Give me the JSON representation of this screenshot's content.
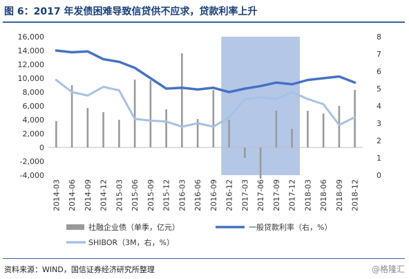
{
  "title": "图 6：2017 年发债困难导致信贷供不应求，贷款利率上升",
  "footer": "资料来源：WIND，国信证券经济研究所整理",
  "watermark": "@格隆汇",
  "colors": {
    "title": "#1a3f7a",
    "bar": "#9a9a9a",
    "loan_rate": "#4472c4",
    "shibor": "#a6c1e6",
    "highlight": "#b4c7e7"
  },
  "chart_data": {
    "type": "bar+line",
    "categories": [
      "2014-03",
      "2014-06",
      "2014-09",
      "2014-12",
      "2015-03",
      "2015-06",
      "2015-09",
      "2015-12",
      "2016-03",
      "2016-06",
      "2016-09",
      "2016-12",
      "2017-03",
      "2017-06",
      "2017-09",
      "2017-12",
      "2018-03",
      "2018-06",
      "2018-09",
      "2018-12"
    ],
    "left_axis": {
      "ylim": [
        -4000,
        16000
      ],
      "ticks": [
        "16,000",
        "14,000",
        "12,000",
        "10,000",
        "8,000",
        "6,000",
        "4,000",
        "2,000",
        "0",
        "-2,000",
        "-4,000"
      ]
    },
    "right_axis": {
      "ylim": [
        0,
        8
      ],
      "ticks": [
        "8",
        "7",
        "6",
        "5",
        "4",
        "3",
        "2",
        "1",
        "0"
      ]
    },
    "highlight_range": [
      "2016-12",
      "2017-12"
    ],
    "series": [
      {
        "name": "社融企业债（单季，亿元）",
        "kind": "bar",
        "axis": "left",
        "values": [
          3800,
          9000,
          5700,
          5100,
          4000,
          9800,
          9700,
          5500,
          13600,
          4100,
          8300,
          4000,
          -1500,
          -4500,
          5300,
          2700,
          5300,
          4900,
          6000,
          8300
        ]
      },
      {
        "name": "一般贷款利率（右，%）",
        "kind": "line",
        "axis": "right",
        "values": [
          7.2,
          7.1,
          7.15,
          6.7,
          6.55,
          6.2,
          5.6,
          5.0,
          5.05,
          4.95,
          5.05,
          4.8,
          5.0,
          5.15,
          5.35,
          5.25,
          5.5,
          5.6,
          5.7,
          5.35
        ]
      },
      {
        "name": "SHIBOR（3M，右，%）",
        "kind": "line",
        "axis": "right",
        "values": [
          5.5,
          4.8,
          4.6,
          5.1,
          4.9,
          3.25,
          3.15,
          3.1,
          2.8,
          3.0,
          2.8,
          3.35,
          4.4,
          4.5,
          4.4,
          4.8,
          4.4,
          4.1,
          2.9,
          3.35
        ]
      }
    ]
  }
}
